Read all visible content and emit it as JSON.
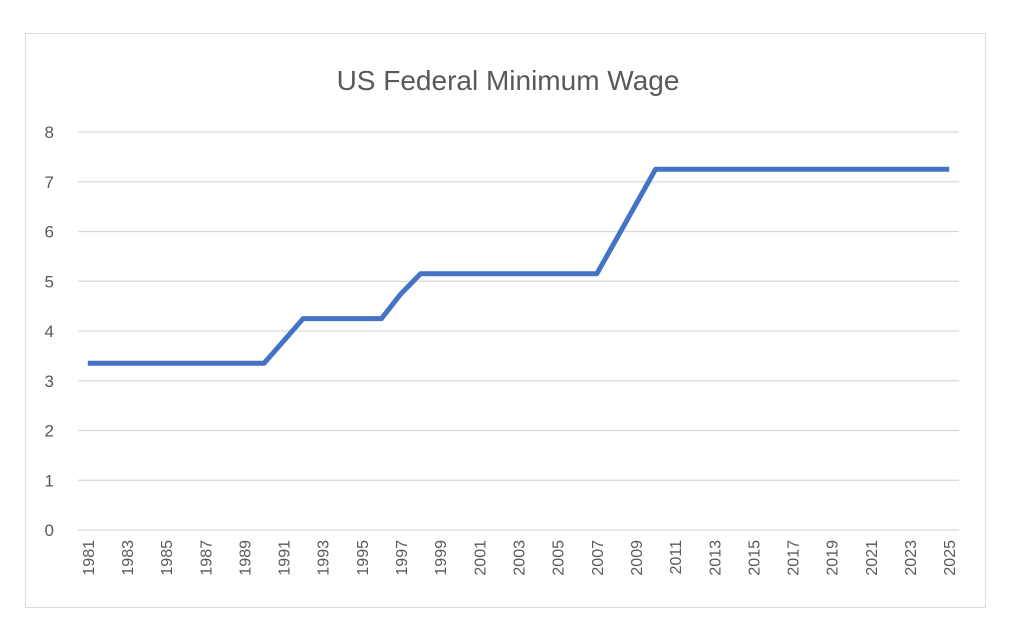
{
  "chart_data": {
    "type": "line",
    "title": "US Federal Minimum Wage",
    "xlabel": "",
    "ylabel": "",
    "ylim": [
      0,
      8
    ],
    "yticks": [
      "0",
      "1",
      "2",
      "3",
      "4",
      "5",
      "6",
      "7",
      "8"
    ],
    "grid": true,
    "legend": "none",
    "x": [
      1981,
      1982,
      1983,
      1984,
      1985,
      1986,
      1987,
      1988,
      1989,
      1990,
      1991,
      1992,
      1993,
      1994,
      1995,
      1996,
      1997,
      1998,
      1999,
      2000,
      2001,
      2002,
      2003,
      2004,
      2005,
      2006,
      2007,
      2008,
      2009,
      2010,
      2011,
      2012,
      2013,
      2014,
      2015,
      2016,
      2017,
      2018,
      2019,
      2020,
      2021,
      2022,
      2023,
      2024,
      2025
    ],
    "xticks": [
      "1981",
      "1983",
      "1985",
      "1987",
      "1989",
      "1991",
      "1993",
      "1995",
      "1997",
      "1999",
      "2001",
      "2003",
      "2005",
      "2007",
      "2009",
      "2011",
      "2013",
      "2015",
      "2017",
      "2019",
      "2021",
      "2023",
      "2025"
    ],
    "series": [
      {
        "values": [
          3.35,
          3.35,
          3.35,
          3.35,
          3.35,
          3.35,
          3.35,
          3.35,
          3.35,
          3.35,
          3.8,
          4.25,
          4.25,
          4.25,
          4.25,
          4.25,
          4.75,
          5.15,
          5.15,
          5.15,
          5.15,
          5.15,
          5.15,
          5.15,
          5.15,
          5.15,
          5.15,
          5.85,
          6.55,
          7.25,
          7.25,
          7.25,
          7.25,
          7.25,
          7.25,
          7.25,
          7.25,
          7.25,
          7.25,
          7.25,
          7.25,
          7.25,
          7.25,
          7.25,
          7.25
        ],
        "color": "#4472c4"
      }
    ]
  }
}
